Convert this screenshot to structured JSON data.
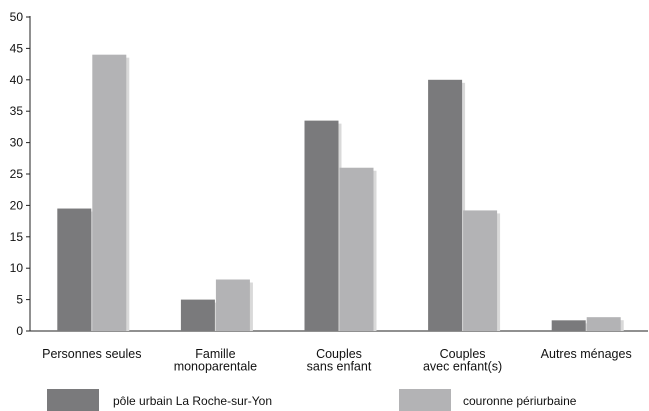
{
  "chart_data": {
    "type": "bar",
    "categories": [
      [
        "Personnes seules"
      ],
      [
        "Famille",
        "monoparentale"
      ],
      [
        "Couples",
        "sans enfant"
      ],
      [
        "Couples",
        "avec enfant(s)"
      ],
      [
        "Autres ménages"
      ]
    ],
    "series": [
      {
        "name": "pôle urbain La Roche-sur-Yon",
        "color": "#7a7a7c",
        "values": [
          19.5,
          5,
          33.5,
          40,
          1.7
        ]
      },
      {
        "name": "couronne périurbaine",
        "color": "#b3b3b5",
        "values": [
          44,
          8.2,
          26,
          19.2,
          2.2
        ]
      }
    ],
    "yticks": [
      0,
      5,
      10,
      15,
      20,
      25,
      30,
      35,
      40,
      45,
      50
    ],
    "ylim": [
      0,
      50
    ],
    "grid": false,
    "legend_position": "bottom"
  }
}
